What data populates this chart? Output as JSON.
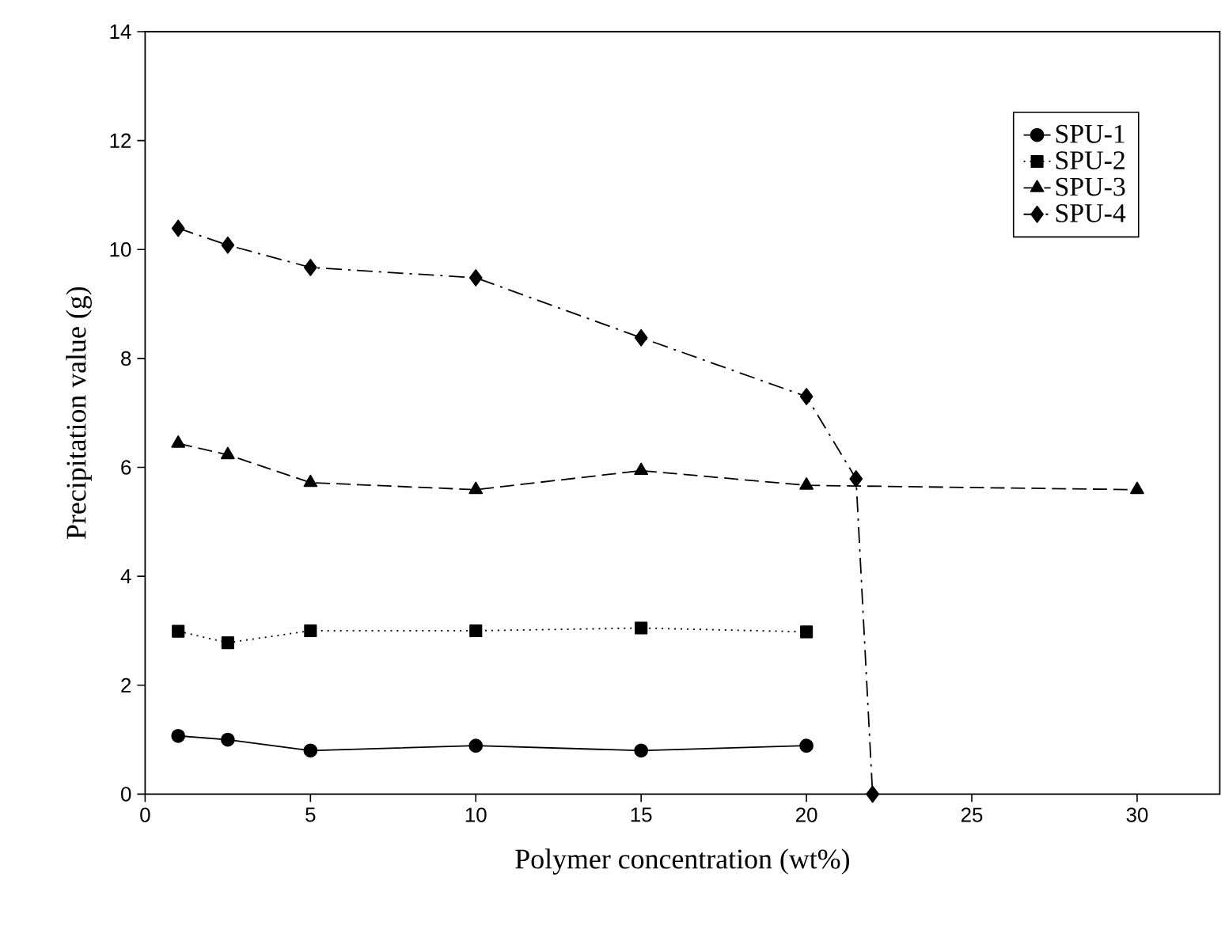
{
  "chart_data": {
    "type": "line",
    "xlabel": "Polymer concentration (wt%)",
    "ylabel": "Precipitation value (g)",
    "xlim": [
      0,
      32.5
    ],
    "xticks": [
      0,
      5,
      10,
      15,
      20,
      25,
      30
    ],
    "ylim": [
      0,
      14
    ],
    "yticks": [
      0,
      2,
      4,
      6,
      8,
      10,
      12,
      14
    ],
    "grid": false,
    "legend": "top right",
    "series": [
      {
        "name": "SPU-1",
        "color": "#000000",
        "marker": "circle",
        "line_style": "solid",
        "x": [
          1,
          2.5,
          5,
          10,
          15,
          20
        ],
        "values": [
          1.07,
          1.0,
          0.8,
          0.89,
          0.8,
          0.89
        ]
      },
      {
        "name": "SPU-2",
        "color": "#000000",
        "marker": "square",
        "line_style": "dotted",
        "x": [
          1,
          2.5,
          5,
          10,
          15,
          20
        ],
        "values": [
          2.99,
          2.78,
          3.0,
          3.0,
          3.05,
          2.98
        ]
      },
      {
        "name": "SPU-3",
        "color": "#000000",
        "marker": "triangle",
        "line_style": "dashed",
        "x": [
          1,
          2.5,
          5,
          10,
          15,
          20,
          30
        ],
        "values": [
          6.44,
          6.23,
          5.72,
          5.59,
          5.94,
          5.67,
          5.59
        ]
      },
      {
        "name": "SPU-4",
        "color": "#000000",
        "marker": "diamond",
        "line_style": "dashdot",
        "x": [
          1,
          2.5,
          5,
          10,
          15,
          20,
          21.5,
          22
        ],
        "values": [
          10.39,
          10.08,
          9.67,
          9.48,
          8.38,
          7.3,
          5.79,
          0
        ]
      }
    ]
  }
}
